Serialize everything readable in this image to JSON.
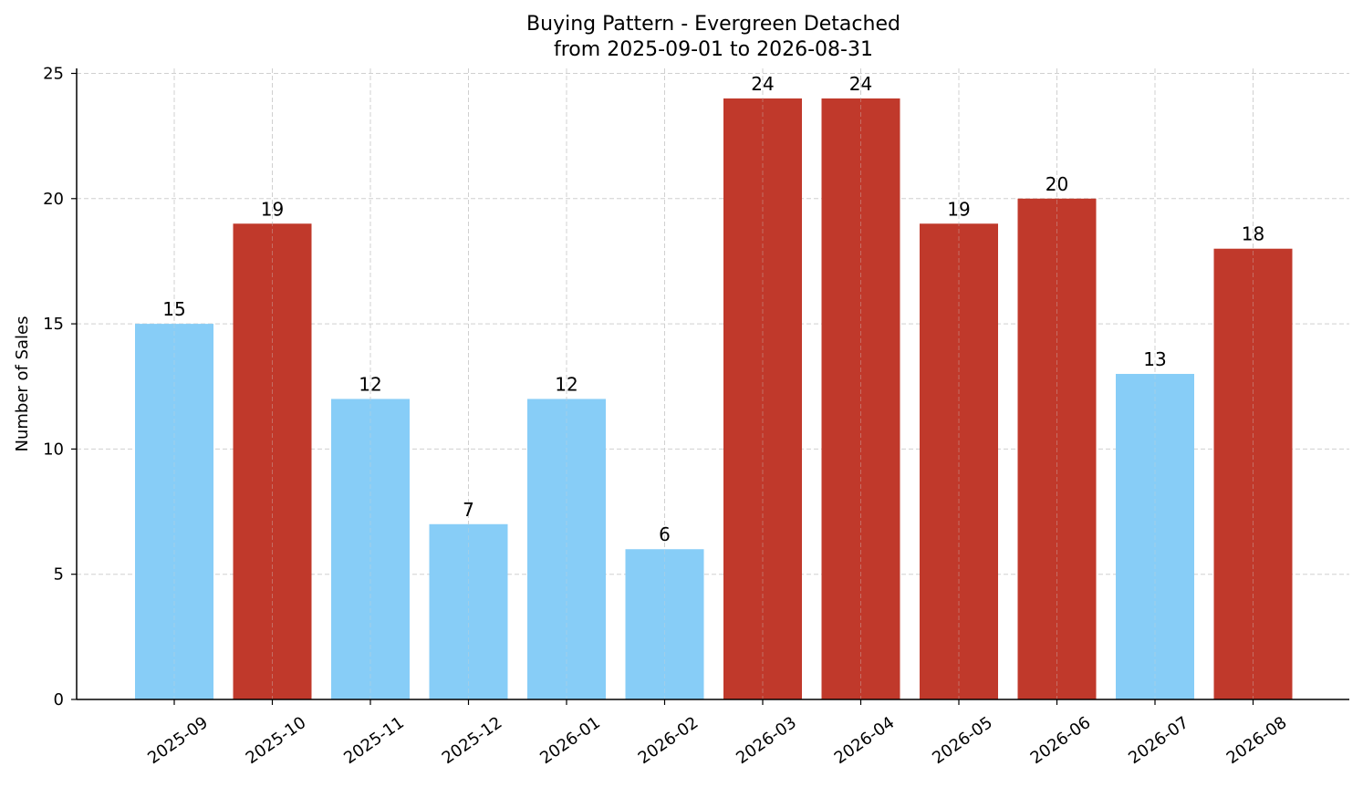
{
  "chart_data": {
    "type": "bar",
    "title": "Buying Pattern - Evergreen Detached",
    "subtitle": "from 2025-09-01 to 2026-08-31",
    "xlabel": "",
    "ylabel": "Number of Sales",
    "categories": [
      "2025-09",
      "2025-10",
      "2025-11",
      "2025-12",
      "2026-01",
      "2026-02",
      "2026-03",
      "2026-04",
      "2026-05",
      "2026-06",
      "2026-07",
      "2026-08"
    ],
    "values": [
      15,
      19,
      12,
      7,
      12,
      6,
      24,
      24,
      19,
      20,
      13,
      18
    ],
    "bar_colors": [
      "#87cdf7",
      "#c0392b",
      "#87cdf7",
      "#87cdf7",
      "#87cdf7",
      "#87cdf7",
      "#c0392b",
      "#c0392b",
      "#c0392b",
      "#c0392b",
      "#87cdf7",
      "#c0392b"
    ],
    "ylim": [
      0,
      25.2
    ],
    "yticks": [
      0,
      5,
      10,
      15,
      20,
      25
    ],
    "grid": true,
    "legend": "none",
    "data_labels": true
  }
}
